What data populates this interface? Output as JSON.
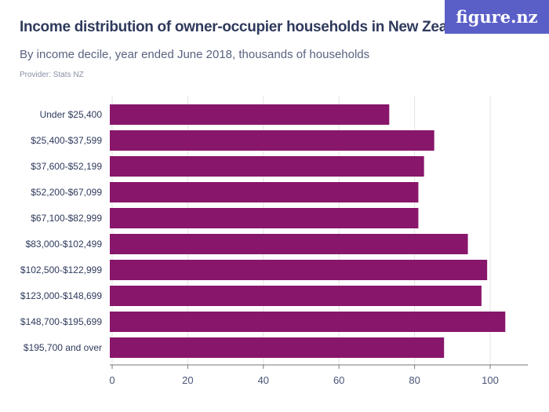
{
  "header": {
    "title": "Income distribution of owner-occupier households in New Zealand",
    "subtitle": "By income decile, year ended June 2018, thousands of households",
    "provider": "Provider: Stats NZ",
    "logo": "figure.nz"
  },
  "chart_data": {
    "type": "bar",
    "orientation": "horizontal",
    "categories": [
      "Under $25,400",
      "$25,400-$37,599",
      "$37,600-$52,199",
      "$52,200-$67,099",
      "$67,100-$82,999",
      "$83,000-$102,499",
      "$102,500-$122,999",
      "$123,000-$148,699",
      "$148,700-$195,699",
      "$195,700 and over"
    ],
    "values": [
      73.3,
      85.2,
      82.5,
      81.0,
      81.0,
      94.1,
      99.2,
      97.7,
      104.0,
      87.8
    ],
    "xlim": [
      0,
      110
    ],
    "xticks": [
      0,
      20,
      40,
      60,
      80,
      100
    ],
    "grid": true,
    "bar_color": "#88166b",
    "title": "",
    "xlabel": "",
    "ylabel": ""
  }
}
